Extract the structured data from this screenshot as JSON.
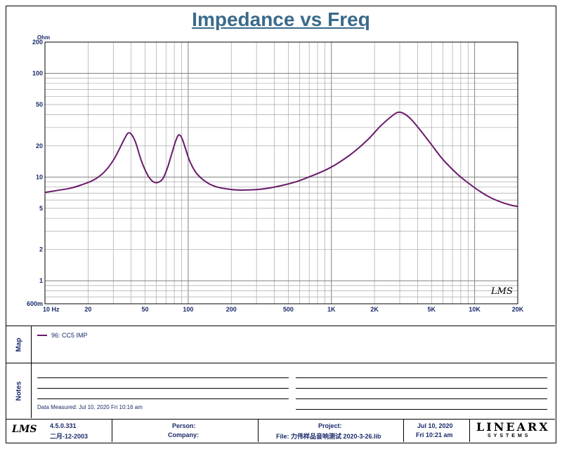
{
  "title": "Impedance vs Freq",
  "chart_data": {
    "type": "line",
    "title": "Impedance vs Freq",
    "xscale": "log",
    "yscale": "log",
    "xlim": [
      10,
      20000
    ],
    "ylim": [
      0.6,
      200
    ],
    "yunit": "Ohm",
    "xticks": [
      {
        "v": 10,
        "label": "10 Hz"
      },
      {
        "v": 20,
        "label": "20"
      },
      {
        "v": 50,
        "label": "50"
      },
      {
        "v": 100,
        "label": "100"
      },
      {
        "v": 200,
        "label": "200"
      },
      {
        "v": 500,
        "label": "500"
      },
      {
        "v": 1000,
        "label": "1K"
      },
      {
        "v": 2000,
        "label": "2K"
      },
      {
        "v": 5000,
        "label": "5K"
      },
      {
        "v": 10000,
        "label": "10K"
      },
      {
        "v": 20000,
        "label": "20K"
      }
    ],
    "yticks": [
      {
        "v": 0.6,
        "label": "600m"
      },
      {
        "v": 1,
        "label": "1"
      },
      {
        "v": 2,
        "label": "2"
      },
      {
        "v": 5,
        "label": "5"
      },
      {
        "v": 10,
        "label": "10"
      },
      {
        "v": 20,
        "label": "20"
      },
      {
        "v": 50,
        "label": "50"
      },
      {
        "v": 100,
        "label": "100"
      },
      {
        "v": 200,
        "label": "200"
      }
    ],
    "series": [
      {
        "name": "96: CC5 IMP",
        "color": "#6a1a6a",
        "x": [
          10,
          12,
          15,
          18,
          22,
          26,
          30,
          33,
          36,
          38,
          40,
          43,
          47,
          52,
          57,
          62,
          67,
          72,
          77,
          82,
          86,
          90,
          95,
          102,
          112,
          125,
          140,
          160,
          185,
          220,
          260,
          310,
          380,
          470,
          580,
          720,
          900,
          1100,
          1400,
          1800,
          2200,
          2600,
          2900,
          3200,
          3600,
          4200,
          5000,
          6000,
          7500,
          9000,
          11000,
          13000,
          15500,
          18000,
          20000
        ],
        "y": [
          7.1,
          7.4,
          7.8,
          8.4,
          9.4,
          11.2,
          14.5,
          18.5,
          23.5,
          26.5,
          26.0,
          21.5,
          14.5,
          10.5,
          9.0,
          8.9,
          9.8,
          12.5,
          17.0,
          22.5,
          25.5,
          24.0,
          19.5,
          14.5,
          11.3,
          9.6,
          8.6,
          8.0,
          7.7,
          7.5,
          7.5,
          7.6,
          7.9,
          8.4,
          9.1,
          10.2,
          11.6,
          13.5,
          17.0,
          23.0,
          31.0,
          38.0,
          42.0,
          41.0,
          36.0,
          28.0,
          20.5,
          14.8,
          10.8,
          8.8,
          7.2,
          6.3,
          5.7,
          5.35,
          5.2
        ]
      }
    ],
    "grid": true,
    "logo_mark": "LMS"
  },
  "map": {
    "label": "Map",
    "entries": [
      {
        "text": "96: CC5  IMP",
        "color": "#6a1a6a"
      }
    ]
  },
  "notes": {
    "label": "Notes",
    "data_measured": "Data Measured:  Jul 10, 2020   Fri  10:16 am"
  },
  "footer": {
    "logo": "LMS",
    "version": "4.5.0.331",
    "build_date": "二月-12-2003",
    "person_label": "Person:",
    "company_label": "Company:",
    "project_label": "Project:",
    "file_text": "File: 力伟样品音响测试 2020-3-26.lib",
    "date": "Jul 10, 2020",
    "time": "Fri 10:21 am",
    "brand": "LINEARX",
    "brand_sub": "SYSTEMS"
  }
}
